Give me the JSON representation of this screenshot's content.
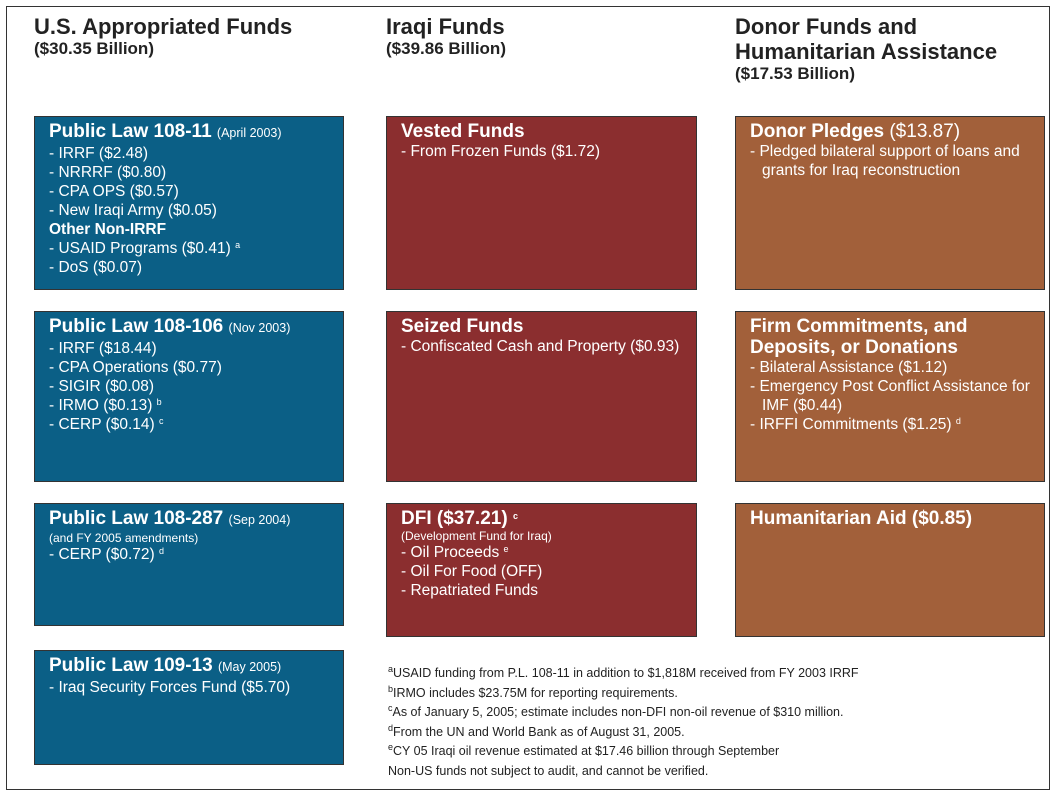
{
  "columns": [
    {
      "title": "U.S.  Appropriated Funds",
      "subtitle": "($30.35 Billion)",
      "boxes": [
        {
          "title": "Public Law 108-11",
          "note": "(April 2003)",
          "lines": [
            {
              "text": "- IRRF ($2.48)"
            },
            {
              "text": "- NRRRF ($0.80)"
            },
            {
              "text": "- CPA OPS ($0.57)"
            },
            {
              "text": "- New Iraqi Army ($0.05)"
            },
            {
              "heading": "Other Non-IRRF"
            },
            {
              "text": "- USAID Programs ($0.41)",
              "sup": "a"
            },
            {
              "text": "- DoS ($0.07)"
            }
          ]
        },
        {
          "title": "Public Law 108-106",
          "note": "(Nov 2003)",
          "lines": [
            {
              "text": "- IRRF ($18.44)"
            },
            {
              "text": "- CPA Operations ($0.77)"
            },
            {
              "text": "- SIGIR ($0.08)"
            },
            {
              "text": "- IRMO ($0.13)",
              "sup": "b"
            },
            {
              "text": "- CERP ($0.14)",
              "sup": "c"
            }
          ]
        },
        {
          "title": "Public Law 108-287",
          "note": "(Sep 2004)",
          "subnote": "(and FY 2005 amendments)",
          "lines": [
            {
              "text": "- CERP ($0.72)",
              "sup": "d"
            }
          ]
        },
        {
          "title": "Public Law 109-13",
          "note": "(May 2005)",
          "lines": [
            {
              "text": "- Iraq Security Forces Fund ($5.70)"
            }
          ]
        }
      ]
    },
    {
      "title": "Iraqi Funds",
      "subtitle": "($39.86 Billion)",
      "boxes": [
        {
          "title": "Vested Funds",
          "lines": [
            {
              "text": "- From Frozen Funds ($1.72)"
            }
          ]
        },
        {
          "title": "Seized Funds",
          "lines": [
            {
              "text": "- Confiscated Cash and Property ($0.93)"
            }
          ]
        },
        {
          "title": "DFI ($37.21)",
          "sup": "c",
          "subnote": "(Development Fund for Iraq)",
          "lines": [
            {
              "text": "- Oil Proceeds",
              "sup": "e"
            },
            {
              "text": "- Oil For Food (OFF)"
            },
            {
              "text": "- Repatriated Funds"
            }
          ]
        }
      ]
    },
    {
      "title": "Donor Funds and Humanitarian Assistance",
      "subtitle": "($17.53 Billion)",
      "boxes": [
        {
          "title": "Donor Pledges",
          "amount": "($13.87)",
          "lines": [
            {
              "text": "- Pledged bilateral support of loans and grants for Iraq reconstruction"
            }
          ]
        },
        {
          "title": "Firm Commitments, and Deposits, or Donations",
          "lines": [
            {
              "text": "- Bilateral Assistance ($1.12)"
            },
            {
              "text": "- Emergency Post Conflict Assistance for IMF ($0.44)"
            },
            {
              "text": "- IRFFI Commitments ($1.25)",
              "sup": "d"
            }
          ]
        },
        {
          "title": "Humanitarian Aid ($0.85)",
          "lines": []
        }
      ]
    }
  ],
  "footnotes": [
    {
      "sup": "a",
      "text": "USAID funding from P.L. 108-11 in addition to $1,818M received from FY 2003 IRRF"
    },
    {
      "sup": "b",
      "text": "IRMO includes $23.75M for reporting requirements."
    },
    {
      "sup": "c",
      "text": "As of January 5, 2005; estimate includes non-DFI non-oil revenue of $310 million."
    },
    {
      "sup": "d",
      "text": "From the UN and World Bank as of August 31, 2005."
    },
    {
      "sup": "e",
      "text": "CY 05 Iraqi oil revenue estimated at $17.46 billion through September"
    },
    {
      "text": "Non-US funds not subject to audit, and cannot be verified."
    }
  ]
}
